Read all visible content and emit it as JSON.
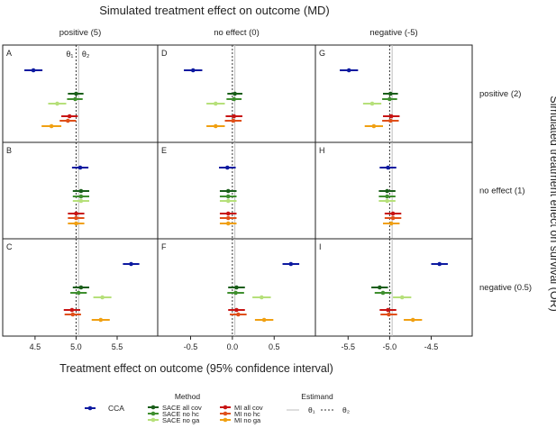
{
  "chart_data": {
    "type": "scatter",
    "subtype": "forest-plot-grid",
    "title": "Simulated treatment effect on outcome (MD)",
    "xlabel": "Treatment effect on outcome (95% confidence interval)",
    "right_title": "Simulated treatment effect on survival (OR)",
    "columns": [
      {
        "label": "positive (5)",
        "ticks": [
          "4.5",
          "5.0",
          "5.5"
        ],
        "tick_values": [
          4.5,
          5.0,
          5.5
        ],
        "xlim": [
          4.15,
          5.95
        ],
        "theta1": 5.0,
        "theta2": 5.03
      },
      {
        "label": "no effect (0)",
        "ticks": [
          "-0.5",
          "0.0",
          "0.5"
        ],
        "tick_values": [
          -0.5,
          0.0,
          0.5
        ],
        "xlim": [
          -0.85,
          0.95
        ],
        "theta1": 0.0,
        "theta2": 0.03
      },
      {
        "label": "negative (-5)",
        "ticks": [
          "-5.5",
          "-5.0",
          "-4.5"
        ],
        "tick_values": [
          -5.5,
          -5.0,
          -4.5
        ],
        "xlim": [
          -5.85,
          -4.05
        ],
        "theta1": -5.0,
        "theta2": -4.97
      }
    ],
    "rows": [
      {
        "label": "positive (2)"
      },
      {
        "label": "no effect (1)"
      },
      {
        "label": "negative (0.5)"
      }
    ],
    "methods": [
      {
        "name": "CCA",
        "color": "#0d1aa0"
      },
      {
        "name": "SACE all cov",
        "color": "#1a5e1a"
      },
      {
        "name": "SACE no hc",
        "color": "#3f8f2f"
      },
      {
        "name": "SACE no ga",
        "color": "#b6e07a"
      },
      {
        "name": "MI all cov",
        "color": "#c81414"
      },
      {
        "name": "MI no hc",
        "color": "#e0501a"
      },
      {
        "name": "MI no ga",
        "color": "#f0a012"
      }
    ],
    "panels": [
      {
        "letter": "A",
        "row": 0,
        "col": 0,
        "estimates": [
          {
            "m": 0,
            "est": 4.48,
            "lo": 4.37,
            "hi": 4.59
          },
          {
            "m": 1,
            "est": 5.0,
            "lo": 4.9,
            "hi": 5.09
          },
          {
            "m": 2,
            "est": 4.99,
            "lo": 4.89,
            "hi": 5.08
          },
          {
            "m": 3,
            "est": 4.77,
            "lo": 4.66,
            "hi": 4.88
          },
          {
            "m": 4,
            "est": 4.92,
            "lo": 4.82,
            "hi": 5.02
          },
          {
            "m": 5,
            "est": 4.9,
            "lo": 4.8,
            "hi": 5.0
          },
          {
            "m": 6,
            "est": 4.7,
            "lo": 4.58,
            "hi": 4.82
          }
        ]
      },
      {
        "letter": "D",
        "row": 0,
        "col": 1,
        "estimates": [
          {
            "m": 0,
            "est": -0.47,
            "lo": -0.58,
            "hi": -0.36
          },
          {
            "m": 1,
            "est": 0.03,
            "lo": -0.06,
            "hi": 0.12
          },
          {
            "m": 2,
            "est": 0.02,
            "lo": -0.07,
            "hi": 0.11
          },
          {
            "m": 3,
            "est": -0.2,
            "lo": -0.31,
            "hi": -0.09
          },
          {
            "m": 4,
            "est": 0.02,
            "lo": -0.08,
            "hi": 0.12
          },
          {
            "m": 5,
            "est": 0.01,
            "lo": -0.09,
            "hi": 0.11
          },
          {
            "m": 6,
            "est": -0.2,
            "lo": -0.31,
            "hi": -0.09
          }
        ]
      },
      {
        "letter": "G",
        "row": 0,
        "col": 2,
        "estimates": [
          {
            "m": 0,
            "est": -5.49,
            "lo": -5.6,
            "hi": -5.38
          },
          {
            "m": 1,
            "est": -4.99,
            "lo": -5.08,
            "hi": -4.9
          },
          {
            "m": 2,
            "est": -5.0,
            "lo": -5.09,
            "hi": -4.91
          },
          {
            "m": 3,
            "est": -5.21,
            "lo": -5.32,
            "hi": -5.1
          },
          {
            "m": 4,
            "est": -4.98,
            "lo": -5.08,
            "hi": -4.88
          },
          {
            "m": 5,
            "est": -4.99,
            "lo": -5.09,
            "hi": -4.89
          },
          {
            "m": 6,
            "est": -5.19,
            "lo": -5.3,
            "hi": -5.08
          }
        ]
      },
      {
        "letter": "B",
        "row": 1,
        "col": 0,
        "estimates": [
          {
            "m": 0,
            "est": 5.05,
            "lo": 4.95,
            "hi": 5.15
          },
          {
            "m": 1,
            "est": 5.06,
            "lo": 4.96,
            "hi": 5.16
          },
          {
            "m": 2,
            "est": 5.06,
            "lo": 4.96,
            "hi": 5.16
          },
          {
            "m": 3,
            "est": 5.06,
            "lo": 4.96,
            "hi": 5.16
          },
          {
            "m": 4,
            "est": 5.0,
            "lo": 4.9,
            "hi": 5.1
          },
          {
            "m": 5,
            "est": 5.0,
            "lo": 4.9,
            "hi": 5.1
          },
          {
            "m": 6,
            "est": 5.0,
            "lo": 4.9,
            "hi": 5.1
          }
        ]
      },
      {
        "letter": "E",
        "row": 1,
        "col": 1,
        "estimates": [
          {
            "m": 0,
            "est": -0.06,
            "lo": -0.16,
            "hi": 0.04
          },
          {
            "m": 1,
            "est": -0.05,
            "lo": -0.15,
            "hi": 0.05
          },
          {
            "m": 2,
            "est": -0.05,
            "lo": -0.15,
            "hi": 0.05
          },
          {
            "m": 3,
            "est": -0.05,
            "lo": -0.15,
            "hi": 0.05
          },
          {
            "m": 4,
            "est": -0.05,
            "lo": -0.15,
            "hi": 0.05
          },
          {
            "m": 5,
            "est": -0.05,
            "lo": -0.15,
            "hi": 0.05
          },
          {
            "m": 6,
            "est": -0.05,
            "lo": -0.15,
            "hi": 0.05
          }
        ]
      },
      {
        "letter": "H",
        "row": 1,
        "col": 2,
        "estimates": [
          {
            "m": 0,
            "est": -5.02,
            "lo": -5.12,
            "hi": -4.92
          },
          {
            "m": 1,
            "est": -5.03,
            "lo": -5.13,
            "hi": -4.93
          },
          {
            "m": 2,
            "est": -5.03,
            "lo": -5.13,
            "hi": -4.93
          },
          {
            "m": 3,
            "est": -5.03,
            "lo": -5.13,
            "hi": -4.93
          },
          {
            "m": 4,
            "est": -4.96,
            "lo": -5.06,
            "hi": -4.86
          },
          {
            "m": 5,
            "est": -4.96,
            "lo": -5.06,
            "hi": -4.86
          },
          {
            "m": 6,
            "est": -4.98,
            "lo": -5.08,
            "hi": -4.88
          }
        ]
      },
      {
        "letter": "C",
        "row": 2,
        "col": 0,
        "estimates": [
          {
            "m": 0,
            "est": 5.67,
            "lo": 5.57,
            "hi": 5.77
          },
          {
            "m": 1,
            "est": 5.06,
            "lo": 4.96,
            "hi": 5.16
          },
          {
            "m": 2,
            "est": 5.03,
            "lo": 4.93,
            "hi": 5.13
          },
          {
            "m": 3,
            "est": 5.32,
            "lo": 5.21,
            "hi": 5.43
          },
          {
            "m": 4,
            "est": 4.95,
            "lo": 4.85,
            "hi": 5.05
          },
          {
            "m": 5,
            "est": 4.96,
            "lo": 4.86,
            "hi": 5.06
          },
          {
            "m": 6,
            "est": 5.3,
            "lo": 5.19,
            "hi": 5.41
          }
        ]
      },
      {
        "letter": "F",
        "row": 2,
        "col": 1,
        "estimates": [
          {
            "m": 0,
            "est": 0.7,
            "lo": 0.6,
            "hi": 0.8
          },
          {
            "m": 1,
            "est": 0.05,
            "lo": -0.05,
            "hi": 0.15
          },
          {
            "m": 2,
            "est": 0.04,
            "lo": -0.06,
            "hi": 0.14
          },
          {
            "m": 3,
            "est": 0.35,
            "lo": 0.24,
            "hi": 0.46
          },
          {
            "m": 4,
            "est": 0.05,
            "lo": -0.05,
            "hi": 0.15
          },
          {
            "m": 5,
            "est": 0.07,
            "lo": -0.03,
            "hi": 0.17
          },
          {
            "m": 6,
            "est": 0.38,
            "lo": 0.27,
            "hi": 0.49
          }
        ]
      },
      {
        "letter": "I",
        "row": 2,
        "col": 2,
        "estimates": [
          {
            "m": 0,
            "est": -4.4,
            "lo": -4.5,
            "hi": -4.3
          },
          {
            "m": 1,
            "est": -5.12,
            "lo": -5.22,
            "hi": -5.02
          },
          {
            "m": 2,
            "est": -5.08,
            "lo": -5.18,
            "hi": -4.98
          },
          {
            "m": 3,
            "est": -4.85,
            "lo": -4.96,
            "hi": -4.74
          },
          {
            "m": 4,
            "est": -5.02,
            "lo": -5.12,
            "hi": -4.92
          },
          {
            "m": 5,
            "est": -5.01,
            "lo": -5.11,
            "hi": -4.91
          },
          {
            "m": 6,
            "est": -4.72,
            "lo": -4.83,
            "hi": -4.61
          }
        ]
      }
    ],
    "legend": {
      "method_title": "Method",
      "estimand_title": "Estimand",
      "estimand_labels": [
        "θ₁",
        "θ₂"
      ],
      "placement": "bottom"
    },
    "annotation_theta1": "θ₁",
    "annotation_theta2": "θ₂"
  }
}
